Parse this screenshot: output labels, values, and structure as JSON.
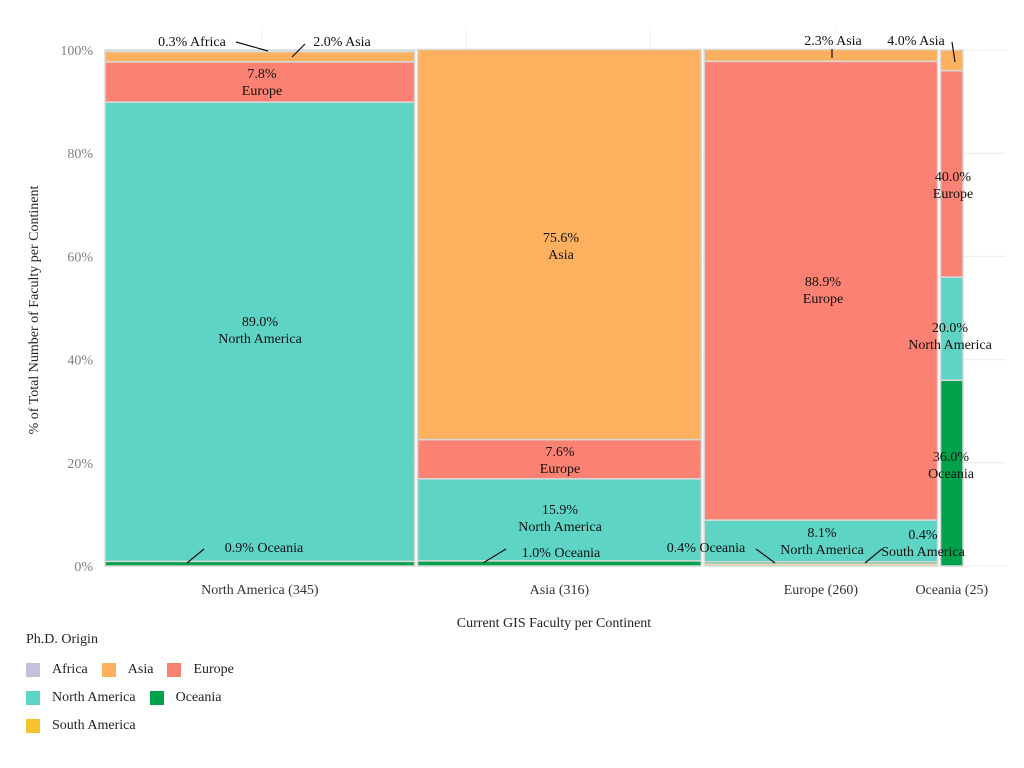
{
  "chart_data": {
    "type": "mosaic",
    "xlabel": "Current GIS Faculty per Continent",
    "ylabel": "% of Total Number of Faculty per Continent",
    "y_ticks": [
      "0%",
      "20%",
      "40%",
      "60%",
      "80%",
      "100%"
    ],
    "legend_title": "Ph.D. Origin",
    "legend": [
      {
        "name": "Africa",
        "color": "#c7c0dc"
      },
      {
        "name": "Asia",
        "color": "#fdb15e"
      },
      {
        "name": "Europe",
        "color": "#fb8172"
      },
      {
        "name": "North America",
        "color": "#5dd4c4"
      },
      {
        "name": "Oceania",
        "color": "#00a24b"
      },
      {
        "name": "South America",
        "color": "#f4c430"
      }
    ],
    "columns": [
      {
        "label": "North America (345)",
        "count": 345,
        "segments": [
          {
            "origin": "Oceania",
            "value": 0.9
          },
          {
            "origin": "North America",
            "value": 89.0
          },
          {
            "origin": "Europe",
            "value": 7.8
          },
          {
            "origin": "Asia",
            "value": 2.0
          },
          {
            "origin": "Africa",
            "value": 0.3
          }
        ]
      },
      {
        "label": "Asia (316)",
        "count": 316,
        "segments": [
          {
            "origin": "Oceania",
            "value": 1.0
          },
          {
            "origin": "North America",
            "value": 15.9
          },
          {
            "origin": "Europe",
            "value": 7.6
          },
          {
            "origin": "Asia",
            "value": 75.6
          }
        ]
      },
      {
        "label": "Europe (260)",
        "count": 260,
        "segments": [
          {
            "origin": "South America",
            "value": 0.4
          },
          {
            "origin": "Oceania",
            "value": 0.4
          },
          {
            "origin": "North America",
            "value": 8.1
          },
          {
            "origin": "Europe",
            "value": 88.9
          },
          {
            "origin": "Asia",
            "value": 2.3
          }
        ]
      },
      {
        "label": "Oceania (25)",
        "count": 25,
        "segments": [
          {
            "origin": "Oceania",
            "value": 36.0
          },
          {
            "origin": "North America",
            "value": 20.0
          },
          {
            "origin": "Europe",
            "value": 40.0
          },
          {
            "origin": "Asia",
            "value": 4.0
          }
        ]
      }
    ],
    "labels": [
      {
        "pct": "0.3%",
        "origin": "Africa",
        "inline": true
      },
      {
        "pct": "2.0%",
        "origin": "Asia",
        "inline": true
      },
      {
        "pct": "7.8%",
        "origin": "Europe"
      },
      {
        "pct": "89.0%",
        "origin": "North America"
      },
      {
        "pct": "0.9%",
        "origin": "Oceania",
        "inline": true
      },
      {
        "pct": "75.6%",
        "origin": "Asia"
      },
      {
        "pct": "7.6%",
        "origin": "Europe"
      },
      {
        "pct": "15.9%",
        "origin": "North America"
      },
      {
        "pct": "1.0%",
        "origin": "Oceania",
        "inline": true
      },
      {
        "pct": "2.3%",
        "origin": "Asia",
        "inline": true
      },
      {
        "pct": "88.9%",
        "origin": "Europe"
      },
      {
        "pct": "8.1%",
        "origin": "North America"
      },
      {
        "pct": "0.4%",
        "origin": "Oceania",
        "inline": true
      },
      {
        "pct": "0.4%",
        "origin": "South America"
      },
      {
        "pct": "4.0%",
        "origin": "Asia",
        "inline": true
      },
      {
        "pct": "40.0%",
        "origin": "Europe"
      },
      {
        "pct": "20.0%",
        "origin": "North America"
      },
      {
        "pct": "36.0%",
        "origin": "Oceania"
      }
    ]
  }
}
